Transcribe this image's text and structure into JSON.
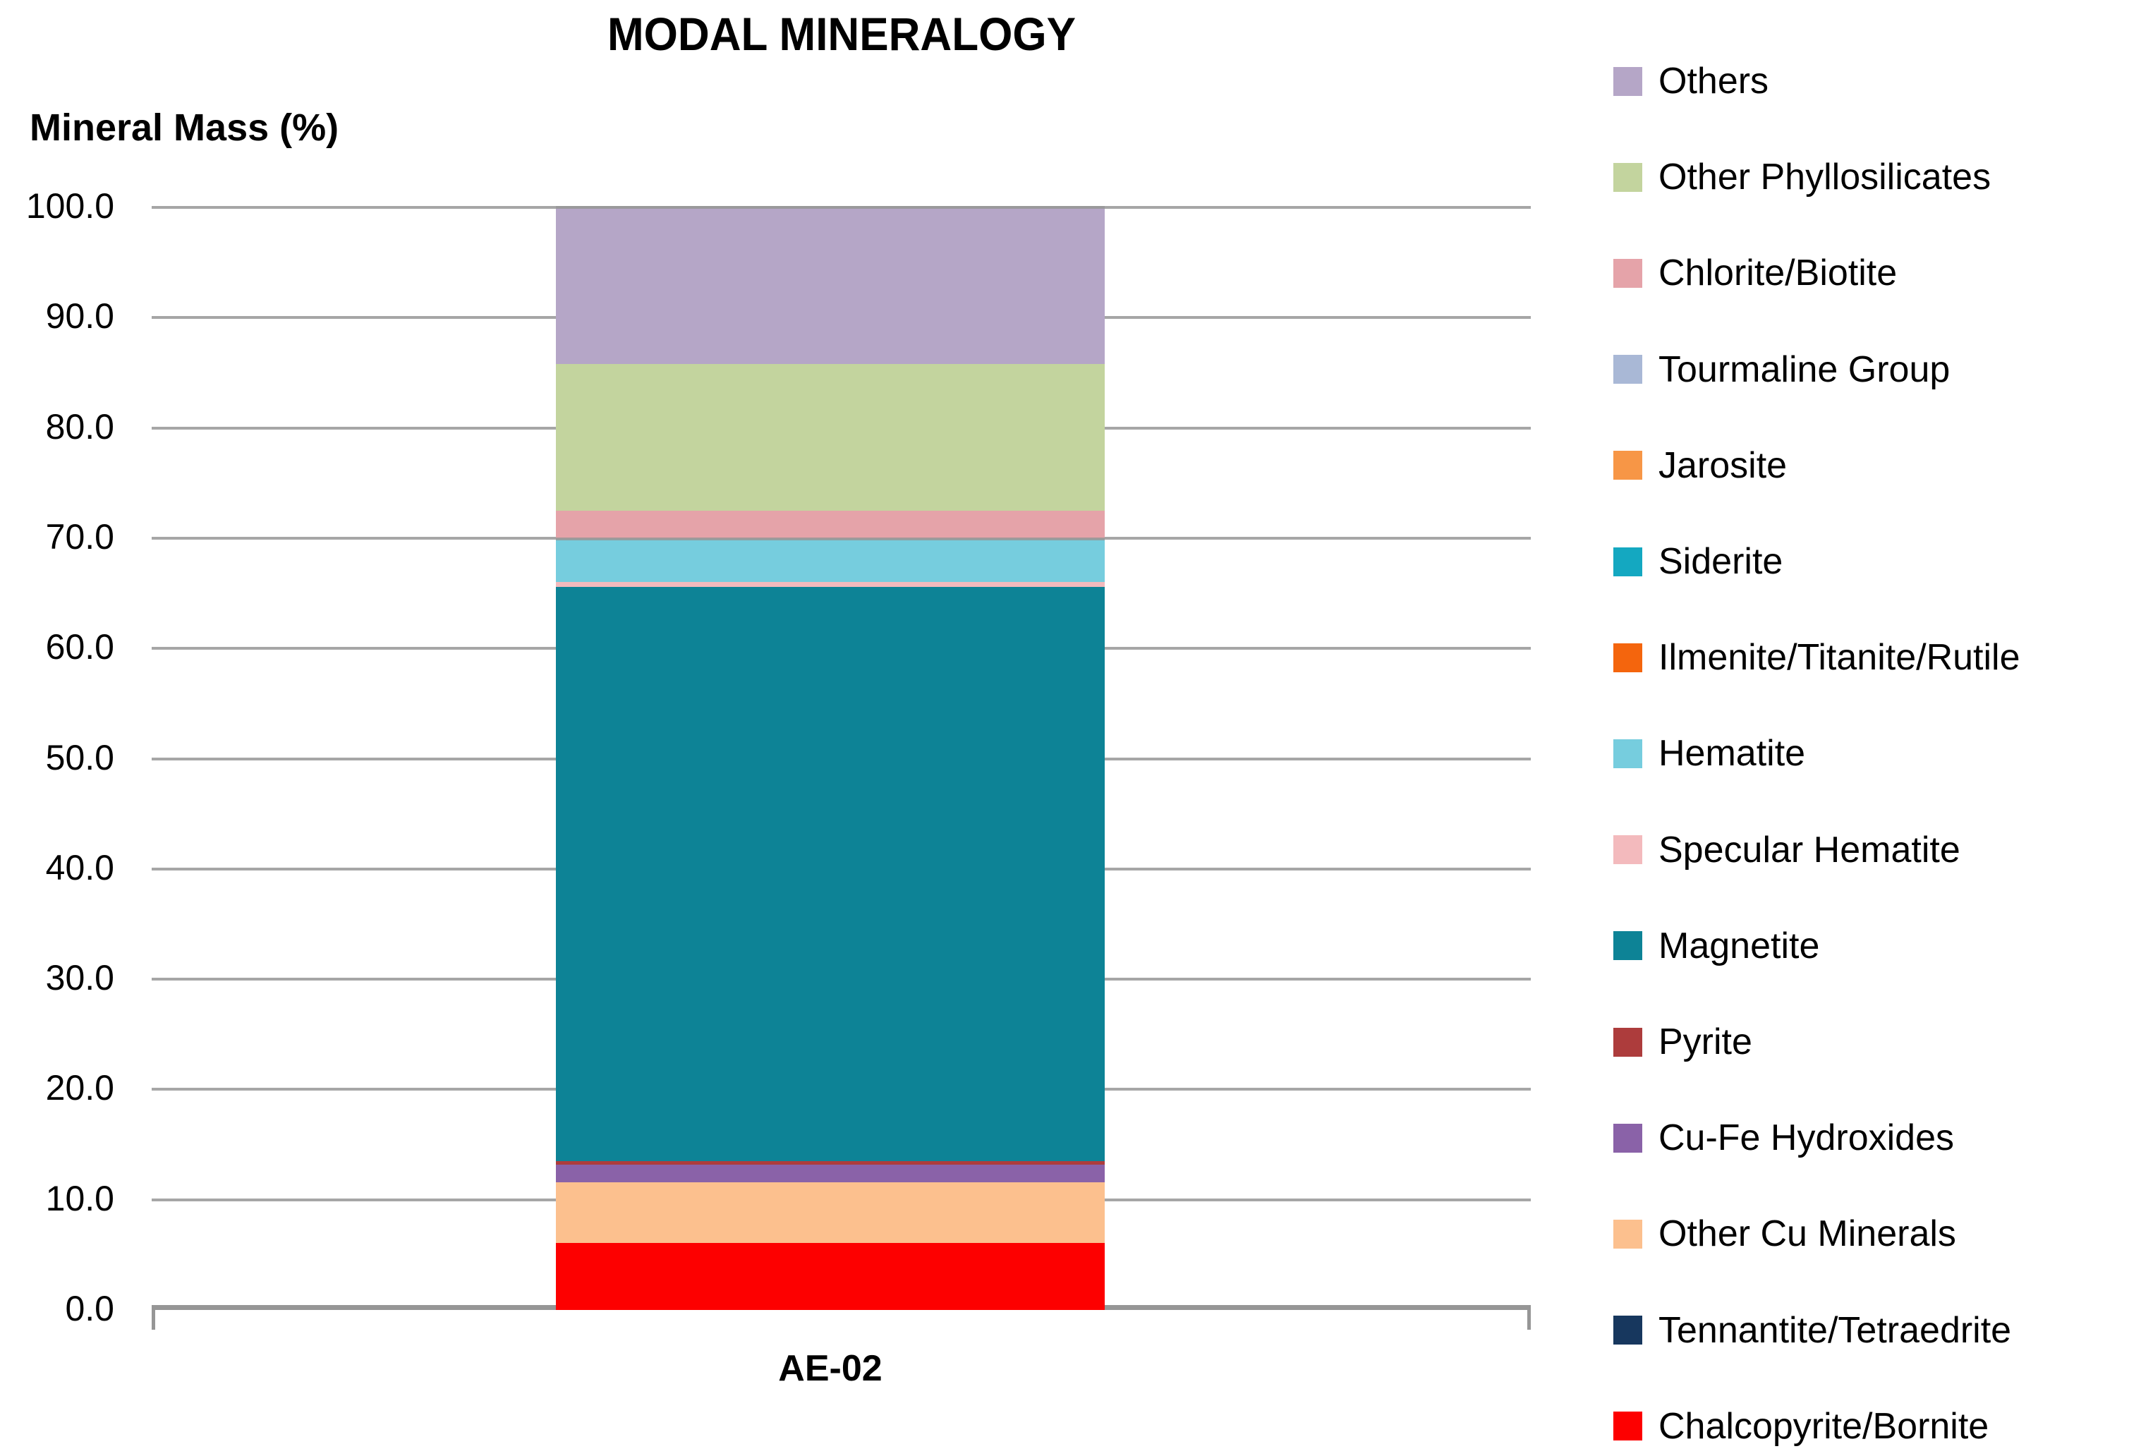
{
  "chart_data": {
    "type": "bar",
    "subtype": "stacked_column",
    "title": "MODAL MINERALOGY",
    "ylabel": "Mineral Mass (%)",
    "categories": [
      "AE-02"
    ],
    "ylim": [
      0,
      100
    ],
    "y_tick_step": 10,
    "y_tick_labels": [
      "0.0",
      "10.0",
      "20.0",
      "30.0",
      "40.0",
      "50.0",
      "60.0",
      "70.0",
      "80.0",
      "90.0",
      "100.0"
    ],
    "grid": true,
    "legend_position": "right",
    "series": [
      {
        "name": "Chalcopyrite/Bornite",
        "color": "#fd0000",
        "values": [
          6.1
        ]
      },
      {
        "name": "Tennantite/Tetraedrite",
        "color": "#17375e",
        "values": [
          0.0
        ]
      },
      {
        "name": "Other Cu Minerals",
        "color": "#fcc08e",
        "values": [
          5.5
        ]
      },
      {
        "name": "Cu-Fe Hydroxides",
        "color": "#8a62a8",
        "values": [
          1.6
        ]
      },
      {
        "name": "Pyrite",
        "color": "#ad3c3c",
        "values": [
          0.3
        ]
      },
      {
        "name": "Magnetite",
        "color": "#0d8396",
        "values": [
          52.1
        ]
      },
      {
        "name": "Specular Hematite",
        "color": "#f3babd",
        "values": [
          0.4
        ]
      },
      {
        "name": "Hematite",
        "color": "#76cdde",
        "values": [
          3.9
        ]
      },
      {
        "name": "Ilmenite/Titanite/Rutile",
        "color": "#f4650d",
        "values": [
          0.0
        ]
      },
      {
        "name": "Siderite",
        "color": "#14a8c1",
        "values": [
          0.0
        ]
      },
      {
        "name": "Jarosite",
        "color": "#f79646",
        "values": [
          0.0
        ]
      },
      {
        "name": "Tourmaline Group",
        "color": "#a9b8d6",
        "values": [
          0.0
        ]
      },
      {
        "name": "Chlorite/Biotite",
        "color": "#e5a3a9",
        "values": [
          2.6
        ]
      },
      {
        "name": "Other Phyllosilicates",
        "color": "#c3d49e",
        "values": [
          13.3
        ]
      },
      {
        "name": "Others",
        "color": "#b5a6c7",
        "values": [
          14.2
        ]
      }
    ],
    "legend": [
      "Others",
      "Other Phyllosilicates",
      "Chlorite/Biotite",
      "Tourmaline Group",
      "Jarosite",
      "Siderite",
      "Ilmenite/Titanite/Rutile",
      "Hematite",
      "Specular Hematite",
      "Magnetite",
      "Pyrite",
      "Cu-Fe Hydroxides",
      "Other Cu Minerals",
      "Tennantite/Tetraedrite",
      "Chalcopyrite/Bornite"
    ],
    "gridline_color": "#a6a6a6",
    "axis_color": "#969696",
    "text_color": "#000000",
    "background_color": "#ffffff"
  }
}
